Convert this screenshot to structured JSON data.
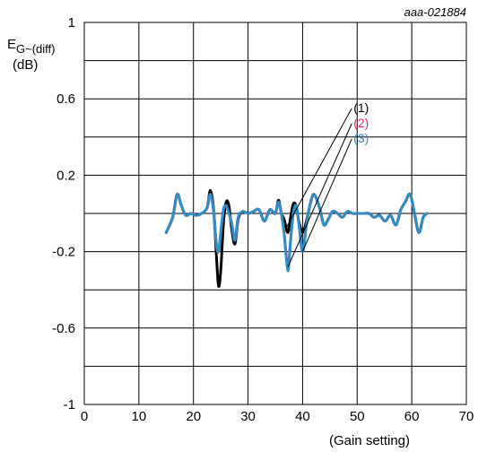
{
  "chart_data": {
    "type": "line",
    "figure_id": "aaa-021884",
    "ylabel_main": "E",
    "ylabel_sub": "G~(diff)",
    "ylabel_unit": "(dB)",
    "xlabel": "(Gain setting)",
    "xlim": [
      0,
      70
    ],
    "ylim": [
      -1,
      1
    ],
    "x_ticks": [
      0,
      10,
      20,
      30,
      40,
      50,
      60,
      70
    ],
    "y_ticks": [
      1,
      0.6,
      0.2,
      -0.2,
      -0.6,
      -1
    ],
    "y_tick_labels": [
      "1",
      "0.6",
      "0.2",
      "-0.2",
      "-0.6",
      "-1"
    ],
    "grid": true,
    "series": [
      {
        "name": "(1)",
        "color": "#000000",
        "x": [
          15,
          16.2,
          17,
          17.8,
          18.6,
          19.5,
          20.5,
          21.5,
          22.5,
          23.1,
          23.7,
          24.2,
          24.6,
          25,
          25.5,
          26,
          26.5,
          27,
          27.6,
          28.2,
          29,
          30,
          31,
          32,
          33,
          34,
          35,
          35.6,
          36.1,
          36.6,
          37.3,
          37.8,
          38.3,
          38.8,
          39.3,
          40,
          40.7,
          41.4,
          42.1,
          43.1,
          43.9,
          44.7,
          45.5,
          46.4,
          47.3,
          48.2,
          49.2,
          50.2,
          51.2,
          52.2,
          53.1,
          54.1,
          55.1,
          56.1,
          57.1,
          58,
          58.8,
          59.7,
          60.5,
          61.3,
          62.1,
          62.8
        ],
        "y": [
          -0.1,
          -0.02,
          0.1,
          0.04,
          -0.01,
          0.0,
          -0.01,
          0.0,
          0.03,
          0.12,
          0.02,
          -0.22,
          -0.38,
          -0.3,
          -0.05,
          0.06,
          0.04,
          -0.08,
          -0.16,
          -0.03,
          0.01,
          0.0,
          0.01,
          0.02,
          -0.04,
          0.02,
          0.0,
          0.07,
          0.0,
          -0.03,
          -0.1,
          -0.02,
          0.05,
          0.04,
          -0.04,
          -0.1,
          -0.04,
          0.05,
          0.1,
          0.03,
          -0.06,
          -0.03,
          0.01,
          0.0,
          -0.02,
          0.01,
          0.0,
          0.0,
          0.0,
          0.0,
          -0.02,
          -0.01,
          -0.04,
          -0.01,
          -0.06,
          0.02,
          0.06,
          0.1,
          0.0,
          -0.1,
          -0.02,
          0.0
        ]
      },
      {
        "name": "(2)",
        "color": "#e3237f",
        "x": [
          15,
          16.2,
          17,
          17.8,
          18.6,
          19.5,
          20.5,
          21.5,
          22.5,
          23.1,
          23.7,
          24.2,
          24.6,
          25,
          25.5,
          26,
          26.5,
          27,
          27.6,
          28.2,
          29,
          30,
          31,
          32,
          33,
          34,
          35,
          35.6,
          36.1,
          36.6,
          37.3,
          37.8,
          38.3,
          38.8,
          39.3,
          40,
          40.7,
          41.4,
          42.1,
          43.1,
          43.9,
          44.7,
          45.5,
          46.4,
          47.3,
          48.2,
          49.2,
          50.2,
          51.2,
          52.2,
          53.1,
          54.1,
          55.1,
          56.1,
          57.1,
          58,
          58.8,
          59.7,
          60.5,
          61.3,
          62.1,
          62.8
        ],
        "y": [
          -0.1,
          -0.02,
          0.1,
          0.04,
          -0.01,
          0.0,
          -0.01,
          0.0,
          0.03,
          0.1,
          0.01,
          -0.16,
          -0.2,
          -0.1,
          0.02,
          0.04,
          0.0,
          -0.05,
          -0.14,
          -0.02,
          0.01,
          0.0,
          0.01,
          0.02,
          -0.04,
          0.02,
          0.0,
          0.06,
          0.0,
          -0.1,
          -0.28,
          -0.14,
          0.0,
          0.04,
          -0.05,
          -0.2,
          -0.06,
          0.05,
          0.1,
          0.03,
          -0.06,
          -0.03,
          0.01,
          0.0,
          -0.02,
          0.01,
          0.0,
          0.0,
          0.0,
          0.0,
          -0.02,
          -0.01,
          -0.04,
          -0.01,
          -0.06,
          0.02,
          0.06,
          0.1,
          0.0,
          -0.1,
          -0.02,
          0.0
        ]
      },
      {
        "name": "(3)",
        "color": "#2f8fc4",
        "x": [
          15,
          16.2,
          17,
          17.8,
          18.6,
          19.5,
          20.5,
          21.5,
          22.5,
          23.1,
          23.7,
          24.2,
          24.6,
          25,
          25.5,
          26,
          26.5,
          27,
          27.6,
          28.2,
          29,
          30,
          31,
          32,
          33,
          34,
          35,
          35.6,
          36.1,
          36.6,
          37.3,
          37.8,
          38.3,
          38.8,
          39.3,
          40,
          40.7,
          41.4,
          42.1,
          43.1,
          43.9,
          44.7,
          45.5,
          46.4,
          47.3,
          48.2,
          49.2,
          50.2,
          51.2,
          52.2,
          53.1,
          54.1,
          55.1,
          56.1,
          57.1,
          58,
          58.8,
          59.7,
          60.5,
          61.3,
          62.1,
          62.8
        ],
        "y": [
          -0.1,
          -0.02,
          0.1,
          0.04,
          -0.01,
          0.0,
          -0.01,
          0.0,
          0.03,
          0.1,
          0.01,
          -0.16,
          -0.2,
          -0.1,
          0.02,
          0.04,
          0.0,
          -0.05,
          -0.14,
          -0.02,
          0.01,
          0.0,
          0.01,
          0.02,
          -0.04,
          0.02,
          0.0,
          0.06,
          0.0,
          -0.1,
          -0.3,
          -0.14,
          0.0,
          0.04,
          -0.05,
          -0.2,
          -0.06,
          0.05,
          0.1,
          0.03,
          -0.06,
          -0.03,
          0.01,
          0.0,
          -0.02,
          0.01,
          0.0,
          0.0,
          0.0,
          0.0,
          -0.02,
          -0.01,
          -0.04,
          -0.01,
          -0.06,
          0.02,
          0.06,
          0.1,
          0.0,
          -0.1,
          -0.02,
          0.0
        ]
      }
    ],
    "annotations": [
      {
        "label": "(1)",
        "color": "#000000",
        "from": [
          49.0,
          0.55
        ],
        "to": [
          36.9,
          -0.08
        ]
      },
      {
        "label": "(2)",
        "color": "#e3237f",
        "from": [
          49.0,
          0.47
        ],
        "to": [
          37.3,
          -0.28
        ]
      },
      {
        "label": "(3)",
        "color": "#2f8fc4",
        "from": [
          49.0,
          0.39
        ],
        "to": [
          40.0,
          -0.2
        ]
      }
    ]
  }
}
